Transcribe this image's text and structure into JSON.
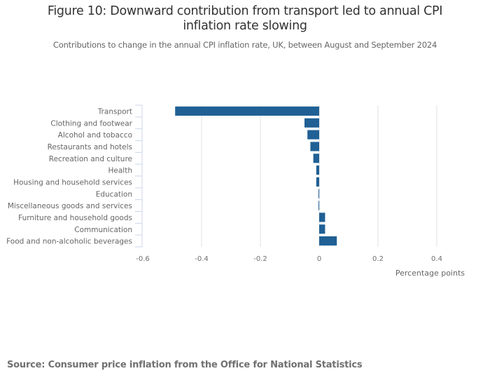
{
  "header": {
    "title_line1": "Figure 10: Downward contribution from transport led to annual CPI",
    "title_line2": "inflation rate slowing",
    "subtitle": "Contributions to change in the annual CPI inflation rate, UK, between August and September 2024"
  },
  "footer": {
    "source": "Source: Consumer price inflation from the Office for National Statistics"
  },
  "chart_data": {
    "type": "bar",
    "orientation": "horizontal",
    "title": "Figure 10: Downward contribution from transport led to annual CPI inflation rate slowing",
    "subtitle": "Contributions to change in the annual CPI inflation rate, UK, between August and September 2024",
    "xlabel": "Percentage points",
    "ylabel": "",
    "categories": [
      "Transport",
      "Clothing and footwear",
      "Alcohol and tobacco",
      "Restaurants and hotels",
      "Recreation and culture",
      "Health",
      "Housing and household services",
      "Education",
      "Miscellaneous goods and services",
      "Furniture and household goods",
      "Communication",
      "Food and non-alcoholic beverages"
    ],
    "values": [
      -0.49,
      -0.05,
      -0.04,
      -0.03,
      -0.02,
      -0.01,
      -0.01,
      0.0,
      0.0,
      0.02,
      0.02,
      0.06
    ],
    "xlim": [
      -0.6,
      0.4
    ],
    "xticks": [
      -0.6,
      -0.4,
      -0.2,
      0,
      0.2,
      0.4
    ],
    "xtick_labels": [
      "-0.6",
      "-0.4",
      "-0.2",
      "0",
      "0.2",
      "0.4"
    ],
    "grid": true,
    "bar_color": "#206095",
    "grid_color": "#e0e0e0",
    "legend": "none"
  }
}
